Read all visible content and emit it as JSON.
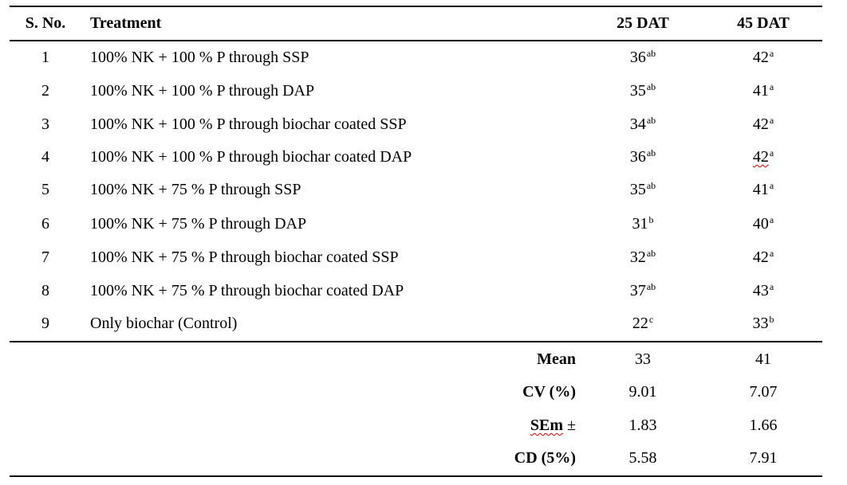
{
  "table": {
    "headers": {
      "sno": "S. No.",
      "treatment": "Treatment",
      "dat25": "25 DAT",
      "dat45": "45 DAT"
    },
    "rows": [
      {
        "sno": "1",
        "treatment": "100% NK + 100 % P through SSP",
        "dat25": {
          "value": "36",
          "group": "ab"
        },
        "dat45": {
          "value": "42",
          "group": "a"
        }
      },
      {
        "sno": "2",
        "treatment": "100% NK + 100 % P through DAP",
        "dat25": {
          "value": "35",
          "group": "ab"
        },
        "dat45": {
          "value": "41",
          "group": "a"
        }
      },
      {
        "sno": "3",
        "treatment": "100% NK + 100 % P through biochar coated SSP",
        "dat25": {
          "value": "34",
          "group": "ab"
        },
        "dat45": {
          "value": "42",
          "group": "a"
        }
      },
      {
        "sno": "4",
        "treatment": "100% NK + 100 % P through biochar coated DAP",
        "dat25": {
          "value": "36",
          "group": "ab"
        },
        "dat45": {
          "value": "42",
          "group": "a"
        }
      },
      {
        "sno": "5",
        "treatment": "100% NK + 75 % P through SSP",
        "dat25": {
          "value": "35",
          "group": "ab"
        },
        "dat45": {
          "value": "41",
          "group": "a"
        }
      },
      {
        "sno": "6",
        "treatment": "100% NK + 75 % P through DAP",
        "dat25": {
          "value": "31",
          "group": "b"
        },
        "dat45": {
          "value": "40",
          "group": "a"
        }
      },
      {
        "sno": "7",
        "treatment": "100% NK + 75 % P through biochar coated SSP",
        "dat25": {
          "value": "32",
          "group": "ab"
        },
        "dat45": {
          "value": "42",
          "group": "a"
        }
      },
      {
        "sno": "8",
        "treatment": "100% NK + 75 % P through biochar coated DAP",
        "dat25": {
          "value": "37",
          "group": "ab"
        },
        "dat45": {
          "value": "43",
          "group": "a"
        }
      },
      {
        "sno": "9",
        "treatment": "Only biochar (Control)",
        "dat25": {
          "value": "22",
          "group": "c"
        },
        "dat45": {
          "value": "33",
          "group": "b"
        }
      }
    ],
    "stats": [
      {
        "label": "Mean",
        "dat25": "33",
        "dat45": "41"
      },
      {
        "label": "CV (%)",
        "dat25": "9.01",
        "dat45": "7.07"
      },
      {
        "label": "SEm ±",
        "label_main": "SEm",
        "label_suffix": " ±",
        "dat25": "1.83",
        "dat45": "1.66"
      },
      {
        "label": "CD (5%)",
        "dat25": "5.58",
        "dat45": "7.91"
      }
    ]
  }
}
